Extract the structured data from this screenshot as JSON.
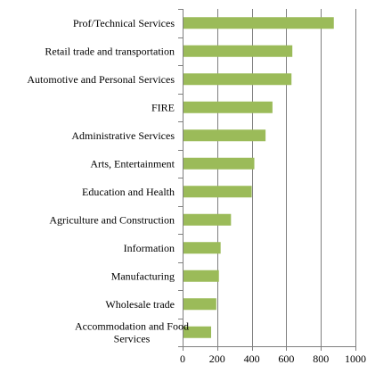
{
  "chart_data": {
    "type": "bar",
    "orientation": "horizontal",
    "categories": [
      "Prof/Technical Services",
      "Retail trade and transportation",
      "Automotive and Personal Services",
      "FIRE",
      "Administrative Services",
      "Arts, Entertainment",
      "Education and Health",
      "Agriculture and Construction",
      "Information",
      "Manufacturing",
      "Wholesale trade",
      "Accommodation and Food Services"
    ],
    "category_lines": [
      [
        "Prof/Technical Services"
      ],
      [
        "Retail trade and transportation"
      ],
      [
        "Automotive and Personal Services"
      ],
      [
        "FIRE"
      ],
      [
        "Administrative Services"
      ],
      [
        "Arts, Entertainment"
      ],
      [
        "Education and Health"
      ],
      [
        "Agriculture and Construction"
      ],
      [
        "Information"
      ],
      [
        "Manufacturing"
      ],
      [
        "Wholesale trade"
      ],
      [
        "Accommodation and Food",
        "Services"
      ]
    ],
    "values": [
      875,
      635,
      630,
      520,
      480,
      415,
      400,
      280,
      220,
      210,
      195,
      165
    ],
    "xlim": [
      0,
      1000
    ],
    "xticks": [
      0,
      200,
      400,
      600,
      800,
      1000
    ],
    "xtick_labels": [
      "0",
      "200",
      "400",
      "600",
      "800",
      "1000"
    ],
    "bar_color": "#9bbb59",
    "axis_color": "#7f7f7f",
    "grid": true,
    "legend": false
  }
}
